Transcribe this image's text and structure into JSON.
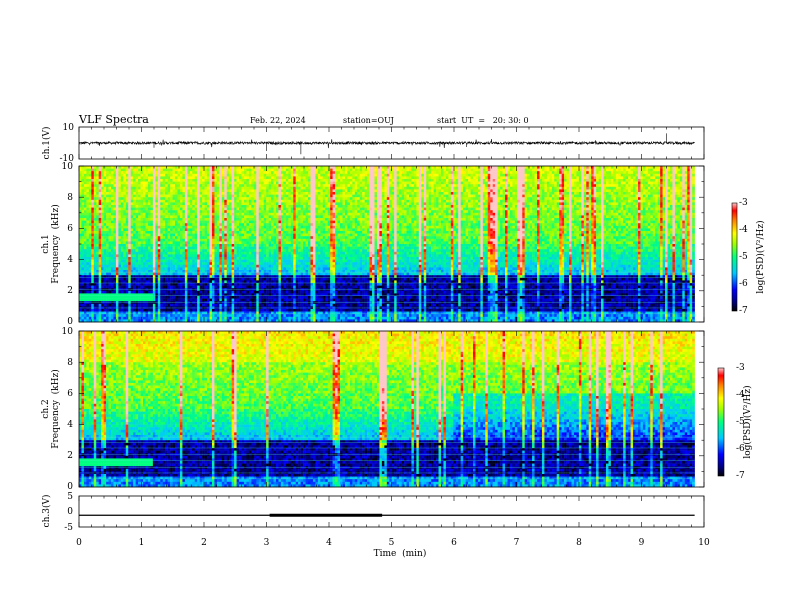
{
  "header": {
    "title": "VLF Spectra",
    "date": "Feb. 22, 2024",
    "station": "station=OUJ",
    "start": "start  UT  =   20: 30: 0"
  },
  "chart_data": [
    {
      "type": "line",
      "panel": "ch1-waveform",
      "ylabel": "ch.1(V)",
      "ylim": [
        -10,
        10
      ],
      "y_ticks": [
        "10",
        "-10"
      ],
      "xlim": [
        0,
        10
      ],
      "description_level": 0
    },
    {
      "type": "heatmap",
      "panel": "ch1-spectrogram",
      "ylabel_top": "ch.1",
      "ylabel": "Frequency  (kHz)",
      "ylim": [
        0,
        10
      ],
      "y_ticks": [
        "0",
        "2",
        "4",
        "6",
        "8",
        "10"
      ],
      "xlim": [
        0,
        9.85
      ],
      "colorbar": {
        "label": "log(PSD)(V²/Hz)",
        "range": [
          -7,
          -3
        ],
        "ticks": [
          "-3",
          "-4",
          "-5",
          "-6",
          "-7"
        ]
      }
    },
    {
      "type": "heatmap",
      "panel": "ch2-spectrogram",
      "ylabel_top": "ch.2",
      "ylabel": "Frequency  (kHz)",
      "ylim": [
        0,
        10
      ],
      "y_ticks": [
        "0",
        "2",
        "4",
        "6",
        "8",
        "10"
      ],
      "xlim": [
        0,
        9.85
      ],
      "colorbar": {
        "label": "log(PSD)(V²/Hz)",
        "range": [
          -7,
          -3
        ],
        "ticks": [
          "-3",
          "-4",
          "-5",
          "-6",
          "-7"
        ]
      }
    },
    {
      "type": "line",
      "panel": "ch3",
      "ylabel": "ch.3(V)",
      "ylim": [
        -5,
        5
      ],
      "y_ticks": [
        "5",
        "0",
        "-5"
      ],
      "xlim": [
        0,
        10
      ],
      "baseline_value": -1.2,
      "thick_segment": [
        3.05,
        4.85
      ]
    }
  ],
  "x_axis": {
    "label": "Time  (min)",
    "ticks": [
      "0",
      "1",
      "2",
      "3",
      "4",
      "5",
      "6",
      "7",
      "8",
      "9",
      "10"
    ],
    "range": [
      0,
      10
    ]
  },
  "colors": {
    "trace": "#000000",
    "colormap": [
      "#00007a",
      "#0000ff",
      "#00c8ff",
      "#00ff80",
      "#a0ff00",
      "#ffff00",
      "#ff8000",
      "#ff0000",
      "#ffc8c8"
    ]
  }
}
